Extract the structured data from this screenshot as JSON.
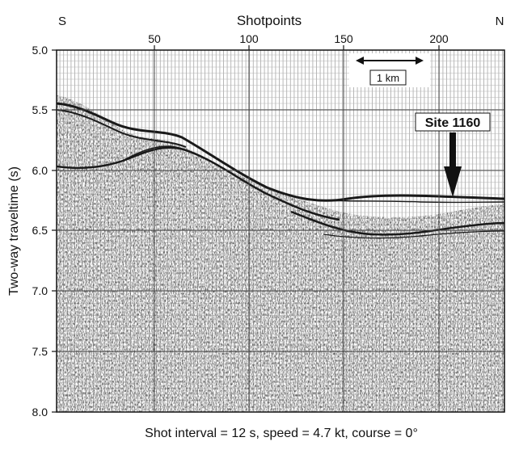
{
  "figure": {
    "top_axis_title": "Shotpoints",
    "left_direction": "S",
    "right_direction": "N",
    "y_axis_title": "Two-way traveltime (s)",
    "caption": "Shot interval = 12 s, speed = 4.7 kt, course = 0°",
    "scale_bar_label": "1 km",
    "site_label": "Site 1160",
    "y_ticks": [
      "5.0",
      "5.5",
      "6.0",
      "6.5",
      "7.0",
      "7.5",
      "8.0"
    ],
    "x_ticks": [
      "50",
      "100",
      "150",
      "200"
    ]
  },
  "colors": {
    "paper": "#ffffff",
    "ink": "#111111",
    "section_noise": "#3a3a3a"
  }
}
